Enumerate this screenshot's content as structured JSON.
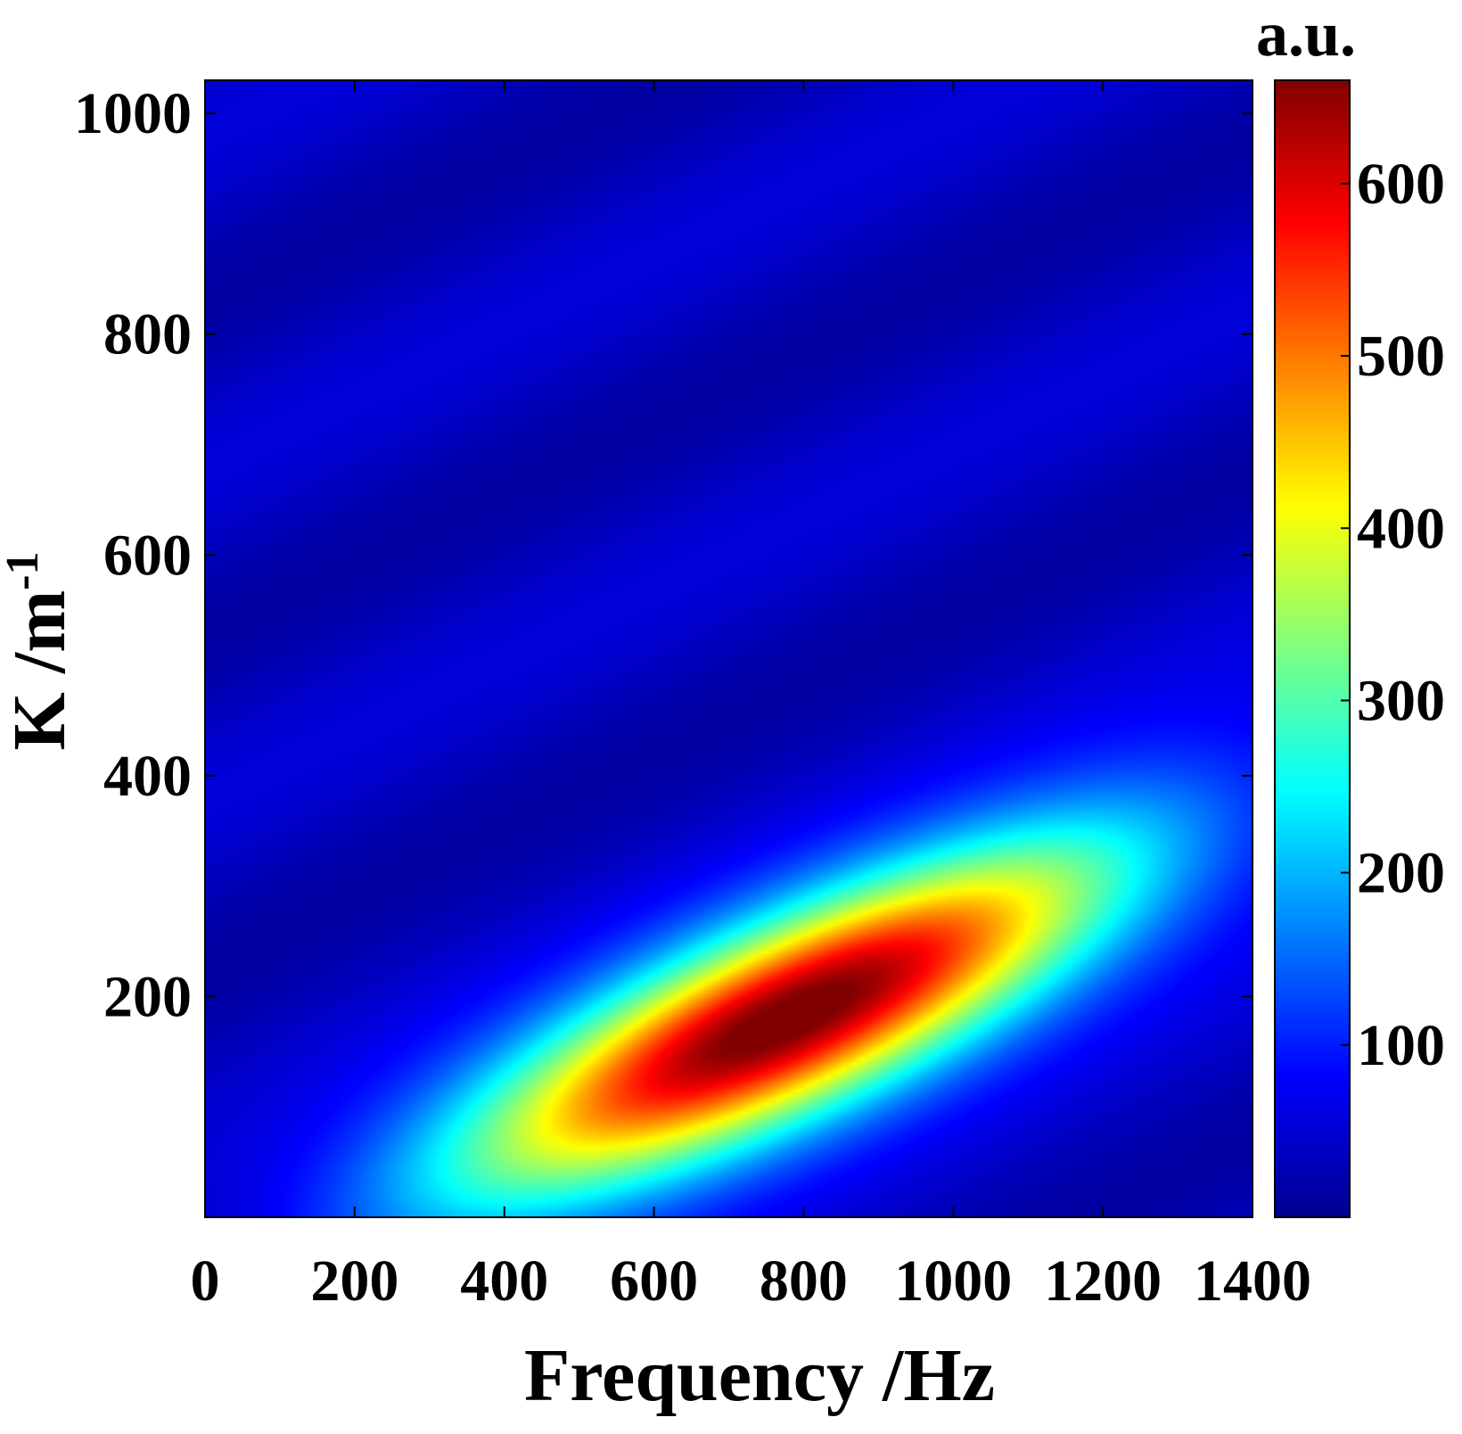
{
  "chart_data": {
    "type": "heatmap",
    "title": "",
    "xlabel": "Frequency /Hz",
    "ylabel_main": "K /m",
    "ylabel_sup": "-1",
    "colorbar_label": "a.u.",
    "xlim": [
      0,
      1400
    ],
    "ylim": [
      0,
      1030
    ],
    "x_ticks": [
      "0",
      "200",
      "400",
      "600",
      "800",
      "1000",
      "1200",
      "1400"
    ],
    "x_tick_values": [
      0,
      200,
      400,
      600,
      800,
      1000,
      1200,
      1400
    ],
    "y_ticks": [
      "200",
      "400",
      "600",
      "800",
      "1000"
    ],
    "y_tick_values": [
      200,
      400,
      600,
      800,
      1000
    ],
    "colorbar_ticks": [
      "100",
      "200",
      "300",
      "400",
      "500",
      "600"
    ],
    "colorbar_tick_values": [
      100,
      200,
      300,
      400,
      500,
      600
    ],
    "colorbar_range": [
      0,
      660
    ],
    "colormap": "jet",
    "grid": false,
    "peak": {
      "frequency": 780,
      "k": 180,
      "value": 660
    },
    "ridge_points": [
      {
        "frequency": 350,
        "k": 20
      },
      {
        "frequency": 550,
        "k": 110
      },
      {
        "frequency": 780,
        "k": 180
      },
      {
        "frequency": 1000,
        "k": 250
      },
      {
        "frequency": 1250,
        "k": 330
      },
      {
        "frequency": 1400,
        "k": 380
      }
    ],
    "background_level": 40
  }
}
